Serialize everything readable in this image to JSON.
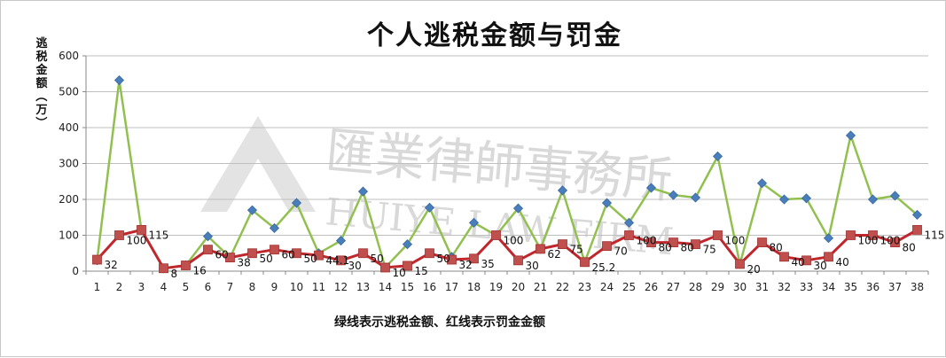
{
  "chart_data": {
    "type": "line",
    "title": "个人逃税金额与罚金",
    "ylabel": "逃税金额（万）",
    "caption": "绿线表示逃税金额、红线表示罚金金额",
    "ylim": [
      0,
      600
    ],
    "y_ticks": [
      "0",
      "100",
      "200",
      "300",
      "400",
      "500",
      "600"
    ],
    "grid": true,
    "x": [
      "1",
      "2",
      "3",
      "4",
      "5",
      "6",
      "7",
      "8",
      "9",
      "10",
      "11",
      "12",
      "13",
      "14",
      "15",
      "16",
      "17",
      "18",
      "19",
      "20",
      "21",
      "22",
      "23",
      "24",
      "25",
      "26",
      "27",
      "28",
      "29",
      "30",
      "31",
      "32",
      "33",
      "34",
      "35",
      "36",
      "37",
      "38"
    ],
    "series": [
      {
        "color": "#92c050",
        "marker_color": "#4a7ebb",
        "marker": "diamond",
        "values": [
          30,
          532,
          115,
          8,
          16,
          97,
          38,
          170,
          120,
          190,
          50,
          85,
          222,
          10,
          75,
          177,
          40,
          135,
          100,
          175,
          62,
          225,
          25.2,
          190,
          135,
          232,
          212,
          205,
          320,
          20,
          245,
          200,
          203,
          92,
          378,
          200,
          210,
          157
        ]
      },
      {
        "color": "#c0272d",
        "marker_color": "#c0504d",
        "marker": "square",
        "values": [
          32,
          100,
          115,
          8,
          16,
          60,
          38,
          50,
          60,
          50,
          44.1,
          30,
          50,
          10,
          15,
          50,
          32,
          35,
          100,
          30,
          62,
          75,
          25.2,
          70,
          100,
          80,
          80,
          75,
          100,
          20,
          80,
          40,
          30,
          40,
          100,
          100,
          80,
          115
        ],
        "data_labels": [
          "32",
          "100",
          "115",
          "8",
          "16",
          "60",
          "38",
          "50",
          "60",
          "50",
          "44.1",
          "30",
          "50",
          "10",
          "15",
          "50",
          "32",
          "35",
          "100",
          "30",
          "62",
          "75",
          "25.2",
          "70",
          "100",
          "80",
          "80",
          "75",
          "100",
          "20",
          "80",
          "40",
          "30",
          "40",
          "100",
          "100",
          "80",
          "115"
        ]
      }
    ],
    "watermark": {
      "text_cn": "匯業律師事務所",
      "text_en": "HUIYE LAW FIRM"
    }
  }
}
